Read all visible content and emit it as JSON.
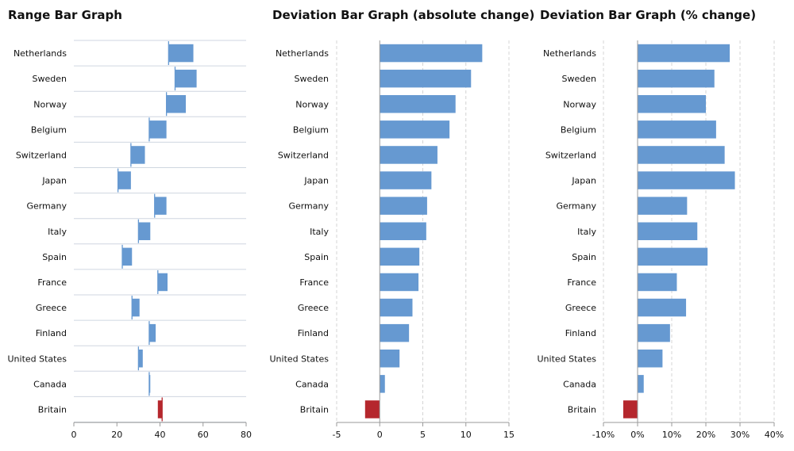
{
  "colors": {
    "bar": "#6699d1",
    "negative": "#b5272d",
    "row_line": "#cfd6e0",
    "grid": "#d4d4d4",
    "axis": "#9a9a9a"
  },
  "chart_data": [
    {
      "id": "range",
      "type": "bar",
      "subtype": "range",
      "title": "Range Bar Graph",
      "categories": [
        "Netherlands",
        "Sweden",
        "Norway",
        "Belgium",
        "Switzerland",
        "Japan",
        "Germany",
        "Italy",
        "Spain",
        "France",
        "Greece",
        "Finland",
        "United States",
        "Canada",
        "Britain"
      ],
      "series": [
        {
          "name": "start",
          "values": [
            44,
            47,
            43,
            35,
            26.5,
            20.5,
            37.5,
            30,
            22.5,
            39,
            27,
            35,
            30,
            35,
            41
          ]
        },
        {
          "name": "end",
          "values": [
            55.5,
            57,
            52,
            43,
            33,
            26.5,
            43,
            35.5,
            27,
            43.5,
            30.5,
            38,
            32,
            35.5,
            39
          ]
        }
      ],
      "xlim": [
        0,
        80
      ],
      "xticks": [
        "0",
        "20",
        "40",
        "60",
        "80"
      ],
      "tick_values": [
        0,
        20,
        40,
        60,
        80
      ],
      "negative_categories": [
        "Britain"
      ],
      "xlabel": "",
      "ylabel": ""
    },
    {
      "id": "absolute",
      "type": "bar",
      "subtype": "deviation",
      "title": "Deviation Bar Graph (absolute change)",
      "categories": [
        "Netherlands",
        "Sweden",
        "Norway",
        "Belgium",
        "Switzerland",
        "Japan",
        "Germany",
        "Italy",
        "Spain",
        "France",
        "Greece",
        "Finland",
        "United States",
        "Canada",
        "Britain"
      ],
      "values": [
        11.9,
        10.6,
        8.8,
        8.1,
        6.7,
        6.0,
        5.5,
        5.4,
        4.6,
        4.5,
        3.8,
        3.4,
        2.3,
        0.6,
        -1.7
      ],
      "xlim": [
        -5,
        15
      ],
      "xticks": [
        "-5",
        "0",
        "5",
        "10",
        "15"
      ],
      "tick_values": [
        -5,
        0,
        5,
        10,
        15
      ],
      "xlabel": "",
      "ylabel": ""
    },
    {
      "id": "percent",
      "type": "bar",
      "subtype": "deviation",
      "title": "Deviation Bar Graph (% change)",
      "categories": [
        "Netherlands",
        "Sweden",
        "Norway",
        "Belgium",
        "Switzerland",
        "Japan",
        "Germany",
        "Italy",
        "Spain",
        "France",
        "Greece",
        "Finland",
        "United States",
        "Canada",
        "Britain"
      ],
      "values": [
        27,
        22.5,
        20,
        23,
        25.5,
        28.5,
        14.5,
        17.5,
        20.5,
        11.5,
        14.2,
        9.5,
        7.3,
        1.8,
        -4.2
      ],
      "xlim": [
        -10,
        40
      ],
      "xticks": [
        "-10%",
        "0%",
        "10%",
        "20%",
        "30%",
        "40%"
      ],
      "tick_values": [
        -10,
        0,
        10,
        20,
        30,
        40
      ],
      "xlabel": "",
      "ylabel": ""
    }
  ]
}
